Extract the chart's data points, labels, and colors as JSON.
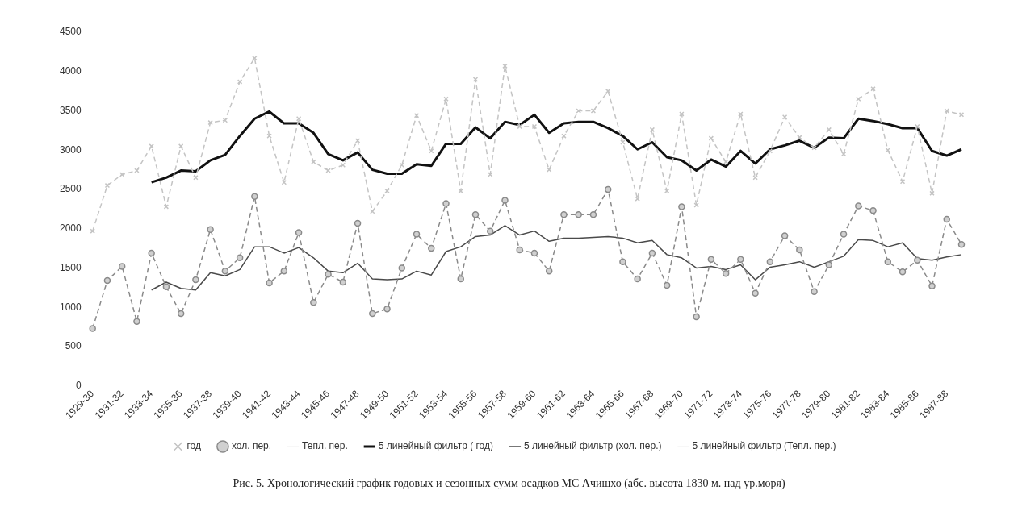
{
  "chart_data": {
    "type": "line",
    "categories": [
      "1929-30",
      null,
      "1931-32",
      null,
      "1933-34",
      null,
      "1935-36",
      null,
      "1937-38",
      null,
      "1939-40",
      null,
      "1941-42",
      null,
      "1943-44",
      null,
      "1945-46",
      null,
      "1947-48",
      null,
      "1949-50",
      null,
      "1951-52",
      null,
      "1953-54",
      null,
      "1955-56",
      null,
      "1957-58",
      null,
      "1959-60",
      null,
      "1961-62",
      null,
      "1963-64",
      null,
      "1965-66",
      null,
      "1967-68",
      null,
      "1969-70",
      null,
      "1971-72",
      null,
      "1973-74",
      null,
      "1975-76",
      null,
      "1977-78",
      null,
      "1979-80",
      null,
      "1981-82",
      null,
      "1983-84",
      null,
      "1985-86",
      null,
      "1987-88",
      null
    ],
    "series": [
      {
        "name": "год",
        "color": "#c4c4c4",
        "line_style": "dashed",
        "marker": "cross",
        "values": [
          1970,
          2550,
          2690,
          2740,
          3050,
          2280,
          3050,
          2650,
          3350,
          3380,
          3870,
          4170,
          3180,
          2590,
          3400,
          2850,
          2740,
          2810,
          3120,
          2220,
          2480,
          2810,
          3440,
          2990,
          3650,
          2480,
          3900,
          2690,
          4070,
          3300,
          3300,
          2750,
          3180,
          3500,
          3500,
          3750,
          3100,
          2380,
          3260,
          2480,
          3460,
          2300,
          3150,
          2850,
          3460,
          2650,
          2990,
          3420,
          3160,
          3030,
          3260,
          2950,
          3650,
          3780,
          3000,
          2600,
          3300,
          2450,
          3500,
          3450
        ]
      },
      {
        "name": "хол. пер.",
        "color": "#8a8a8a",
        "line_style": "dashed",
        "marker": "circle",
        "values": [
          730,
          1340,
          1520,
          820,
          1690,
          1260,
          920,
          1350,
          1990,
          1460,
          1630,
          2410,
          1310,
          1460,
          1950,
          1060,
          1420,
          1320,
          2070,
          920,
          980,
          1500,
          1930,
          1750,
          2320,
          1360,
          2180,
          1970,
          2360,
          1730,
          1690,
          1460,
          2180,
          2180,
          2180,
          2500,
          1580,
          1360,
          1690,
          1280,
          2280,
          880,
          1610,
          1430,
          1610,
          1180,
          1580,
          1910,
          1730,
          1200,
          1540,
          1930,
          2290,
          2230,
          1580,
          1450,
          1600,
          1270,
          2120,
          1800
        ]
      },
      {
        "name": "Тепл. пер.",
        "color": "#f4f4f4",
        "line_style": "dashed",
        "marker": "none",
        "values": [
          null,
          null,
          null,
          null,
          null,
          null,
          null,
          null,
          null,
          null,
          null,
          null,
          null,
          null,
          null,
          null,
          null,
          null,
          null,
          null,
          null,
          null,
          null,
          null,
          null,
          null,
          null,
          null,
          null,
          null,
          null,
          null,
          null,
          null,
          null,
          null,
          null,
          null,
          null,
          null,
          null,
          null,
          null,
          null,
          null,
          null,
          null,
          null,
          null,
          null,
          null,
          null,
          null,
          null,
          null,
          null,
          null,
          null,
          null,
          null
        ]
      },
      {
        "name": "5 линейный фильтр ( год)",
        "color": "#111111",
        "line_style": "solid",
        "marker": "none",
        "values": [
          null,
          null,
          null,
          null,
          2590,
          2650,
          2740,
          2730,
          2870,
          2940,
          3180,
          3400,
          3490,
          3340,
          3340,
          3220,
          2950,
          2870,
          2970,
          2750,
          2700,
          2700,
          2820,
          2800,
          3080,
          3080,
          3290,
          3150,
          3360,
          3320,
          3450,
          3220,
          3340,
          3360,
          3360,
          3280,
          3180,
          3010,
          3100,
          2910,
          2870,
          2740,
          2880,
          2790,
          2990,
          2830,
          3010,
          3060,
          3120,
          3030,
          3160,
          3150,
          3400,
          3370,
          3330,
          3280,
          3280,
          2990,
          2930,
          3010
        ]
      },
      {
        "name": "5 линейный фильтр (хол. пер.)",
        "color": "#4a4a4a",
        "line_style": "solid",
        "marker": "none",
        "values": [
          null,
          null,
          null,
          null,
          1220,
          1320,
          1240,
          1220,
          1440,
          1400,
          1480,
          1770,
          1770,
          1690,
          1760,
          1630,
          1460,
          1440,
          1560,
          1360,
          1350,
          1360,
          1460,
          1410,
          1710,
          1770,
          1900,
          1920,
          2040,
          1920,
          1970,
          1840,
          1880,
          1880,
          1890,
          1900,
          1880,
          1820,
          1850,
          1670,
          1630,
          1500,
          1520,
          1480,
          1540,
          1350,
          1510,
          1540,
          1580,
          1510,
          1580,
          1650,
          1860,
          1850,
          1770,
          1820,
          1620,
          1600,
          1640,
          1670
        ]
      },
      {
        "name": "5 линейный фильтр (Тепл. пер.)",
        "color": "#f4f4f4",
        "line_style": "solid",
        "marker": "none",
        "values": [
          null,
          null,
          null,
          null,
          null,
          null,
          null,
          null,
          null,
          null,
          null,
          null,
          null,
          null,
          null,
          null,
          null,
          null,
          null,
          null,
          null,
          null,
          null,
          null,
          null,
          null,
          null,
          null,
          null,
          null,
          null,
          null,
          null,
          null,
          null,
          null,
          null,
          null,
          null,
          null,
          null,
          null,
          null,
          null,
          null,
          null,
          null,
          null,
          null,
          null,
          null,
          null,
          null,
          null,
          null,
          null,
          null,
          null,
          null,
          null
        ]
      }
    ],
    "ylim": [
      0,
      4500
    ],
    "yticks": [
      0,
      500,
      1000,
      1500,
      2000,
      2500,
      3000,
      3500,
      4000,
      4500
    ],
    "grid": false,
    "legend": "bottom",
    "annotations": [
      "Рис. 5. Хронологический график годовых и сезонных сумм осадков МС Ачишхо (абс. высота 1830 м. над ур.моря)"
    ]
  }
}
